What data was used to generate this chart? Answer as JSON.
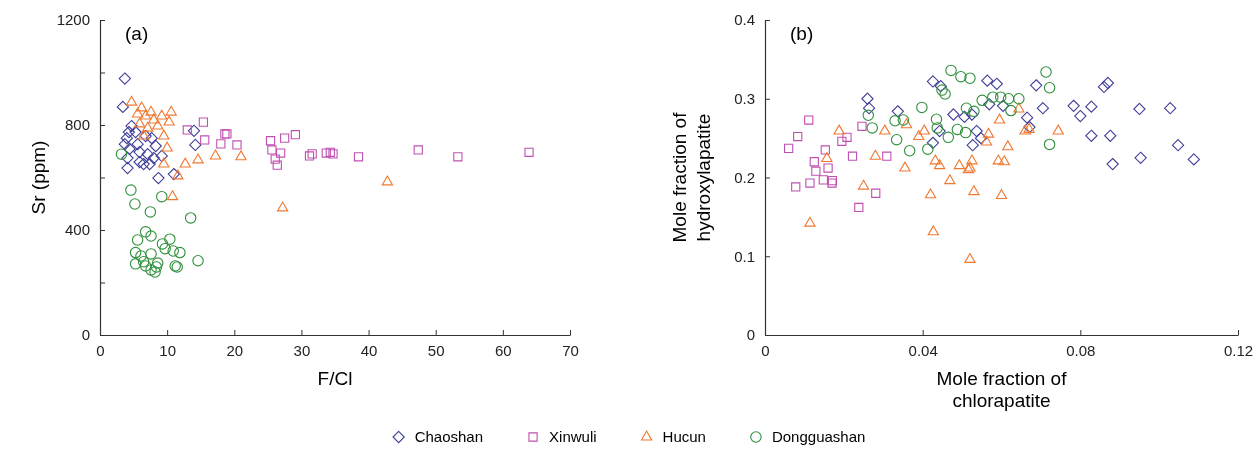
{
  "chart_data": [
    {
      "type": "scatter",
      "title": "(a)",
      "xlabel": "F/Cl",
      "ylabel": "Sr (ppm)",
      "xlim": [
        0,
        70
      ],
      "ylim": [
        0,
        1200
      ],
      "xticks": [
        0,
        10,
        20,
        30,
        40,
        50,
        60,
        70
      ],
      "yticks": [
        0,
        {
          "value": 200,
          "label": null
        },
        400,
        {
          "value": 600,
          "label": null
        },
        800,
        {
          "value": 1000,
          "label": null
        },
        1200
      ],
      "grid": false,
      "legend": "bottom",
      "series": [
        {
          "name": "Chaoshan",
          "color": "#40409a",
          "marker": "diamond",
          "x": [
            3.7,
            3.4,
            14,
            14.2,
            11,
            8.7,
            4.3,
            4,
            3.7,
            4.4,
            4.1,
            4.1,
            5.3,
            5.6,
            5.9,
            5.9,
            6.5,
            7.1,
            7.4,
            8,
            8.3,
            9.2,
            7.7,
            6.8,
            4.7
          ],
          "values": [
            977,
            869,
            778,
            724,
            613,
            598,
            773,
            750,
            727,
            709,
            674,
            636,
            773,
            727,
            697,
            659,
            651,
            689,
            651,
            674,
            720,
            682,
            750,
            758,
            796
          ]
        },
        {
          "name": "Xinwuli",
          "color": "#c050b0",
          "marker": "square",
          "x": [
            13,
            15.4,
            15.6,
            18.6,
            18.9,
            18,
            20.4,
            25.4,
            25.6,
            26.1,
            26.4,
            26.9,
            27.5,
            29.1,
            31.2,
            31.6,
            33.7,
            34.3,
            34.7,
            38.5,
            47.4,
            53.3,
            63.9
          ],
          "values": [
            781,
            811,
            743,
            766,
            766,
            728,
            724,
            740,
            705,
            670,
            647,
            693,
            750,
            763,
            682,
            690,
            693,
            696,
            690,
            679,
            705,
            679,
            696
          ]
        },
        {
          "name": "Hucun",
          "color": "#f07830",
          "marker": "triangle",
          "x": [
            4.7,
            5.6,
            6.2,
            6.8,
            7.6,
            8,
            9.2,
            10.6,
            10.3,
            8.6,
            9.5,
            7.1,
            5.9,
            10,
            9.5,
            11.6,
            10.8,
            12.7,
            14.6,
            17.2,
            21,
            27.2,
            42.8,
            6.5
          ],
          "values": [
            887,
            842,
            865,
            834,
            849,
            819,
            834,
            849,
            811,
            796,
            758,
            788,
            804,
            712,
            651,
            606,
            527,
            651,
            667,
            682,
            679,
            484,
            583,
            758
          ]
        },
        {
          "name": "Dongguashan",
          "color": "#30903c",
          "marker": "circle",
          "x": [
            3.2,
            4.6,
            5.2,
            7.5,
            9.2,
            13.5,
            6.8,
            7.6,
            5.6,
            9.3,
            10.4,
            5.3,
            6.1,
            7.6,
            9.7,
            10.9,
            11.9,
            5.3,
            6.8,
            7.6,
            8.4,
            8.6,
            11.2,
            11.5,
            14.6,
            6.5,
            8.2
          ],
          "values": [
            689,
            552,
            499,
            469,
            527,
            446,
            393,
            377,
            362,
            347,
            365,
            314,
            301,
            309,
            329,
            320,
            314,
            271,
            263,
            248,
            259,
            274,
            263,
            259,
            283,
            279,
            240
          ]
        }
      ]
    },
    {
      "type": "scatter",
      "title": "(b)",
      "xlabel": "Mole fraction of\nchlorapatite",
      "ylabel": "Mole fraction of\nhydroxylapatite",
      "xlim": [
        0,
        0.12
      ],
      "ylim": [
        0,
        0.4
      ],
      "xticks": [
        0,
        0.04,
        0.08,
        0.12
      ],
      "yticks": [
        0,
        0.1,
        0.2,
        0.3,
        0.4
      ],
      "grid": false,
      "series": [
        {
          "color": "#40409a",
          "marker": "diamond",
          "x": [
            0.026,
            0.0264,
            0.0337,
            0.0426,
            0.0446,
            0.0426,
            0.0443,
            0.0478,
            0.0506,
            0.0525,
            0.0537,
            0.0527,
            0.0548,
            0.0564,
            0.0588,
            0.0569,
            0.0604,
            0.0665,
            0.0671,
            0.0688,
            0.0705,
            0.0783,
            0.08,
            0.0828,
            0.0828,
            0.086,
            0.087,
            0.0876,
            0.0882,
            0.095,
            0.0953,
            0.1028,
            0.1048,
            0.1088
          ],
          "values": [
            0.3,
            0.288,
            0.284,
            0.322,
            0.316,
            0.244,
            0.259,
            0.28,
            0.277,
            0.28,
            0.259,
            0.241,
            0.25,
            0.323,
            0.319,
            0.293,
            0.291,
            0.276,
            0.264,
            0.317,
            0.288,
            0.291,
            0.278,
            0.29,
            0.253,
            0.315,
            0.32,
            0.253,
            0.217,
            0.287,
            0.225,
            0.288,
            0.241,
            0.223
          ]
        },
        {
          "color": "#c050b0",
          "marker": "square",
          "x": [
            0.006,
            0.0083,
            0.0111,
            0.0078,
            0.0114,
            0.0125,
            0.0129,
            0.0153,
            0.0148,
            0.016,
            0.0171,
            0.017,
            0.0195,
            0.0208,
            0.0222,
            0.0246,
            0.0238,
            0.0281,
            0.0309
          ],
          "values": [
            0.237,
            0.252,
            0.273,
            0.188,
            0.193,
            0.22,
            0.208,
            0.235,
            0.197,
            0.212,
            0.196,
            0.193,
            0.246,
            0.251,
            0.227,
            0.265,
            0.162,
            0.18,
            0.227
          ]
        },
        {
          "color": "#f07830",
          "marker": "triangle",
          "x": [
            0.0114,
            0.0157,
            0.0188,
            0.025,
            0.028,
            0.0304,
            0.0355,
            0.0359,
            0.039,
            0.0404,
            0.0432,
            0.0443,
            0.042,
            0.0427,
            0.0469,
            0.0493,
            0.0516,
            0.0525,
            0.052,
            0.053,
            0.052,
            0.0567,
            0.0562,
            0.0595,
            0.0592,
            0.0607,
            0.06,
            0.0616,
            0.0644,
            0.066,
            0.067,
            0.0744
          ],
          "values": [
            0.142,
            0.224,
            0.259,
            0.189,
            0.227,
            0.259,
            0.212,
            0.267,
            0.252,
            0.259,
            0.221,
            0.215,
            0.178,
            0.131,
            0.196,
            0.215,
            0.21,
            0.221,
            0.212,
            0.182,
            0.096,
            0.255,
            0.245,
            0.273,
            0.221,
            0.22,
            0.177,
            0.239,
            0.287,
            0.259,
            0.261,
            0.259
          ]
        },
        {
          "color": "#30903c",
          "marker": "circle",
          "x": [
            0.0262,
            0.0272,
            0.033,
            0.0334,
            0.0351,
            0.0367,
            0.0398,
            0.0413,
            0.0435,
            0.0437,
            0.0472,
            0.0449,
            0.0457,
            0.0465,
            0.0488,
            0.0497,
            0.052,
            0.0511,
            0.053,
            0.0509,
            0.0551,
            0.0578,
            0.0598,
            0.0618,
            0.0644,
            0.0624,
            0.0713,
            0.0722,
            0.0722
          ],
          "values": [
            0.279,
            0.263,
            0.272,
            0.248,
            0.273,
            0.234,
            0.289,
            0.236,
            0.274,
            0.263,
            0.336,
            0.311,
            0.306,
            0.251,
            0.261,
            0.328,
            0.326,
            0.288,
            0.284,
            0.257,
            0.298,
            0.302,
            0.302,
            0.3,
            0.3,
            0.285,
            0.334,
            0.314,
            0.242
          ]
        }
      ]
    }
  ]
}
